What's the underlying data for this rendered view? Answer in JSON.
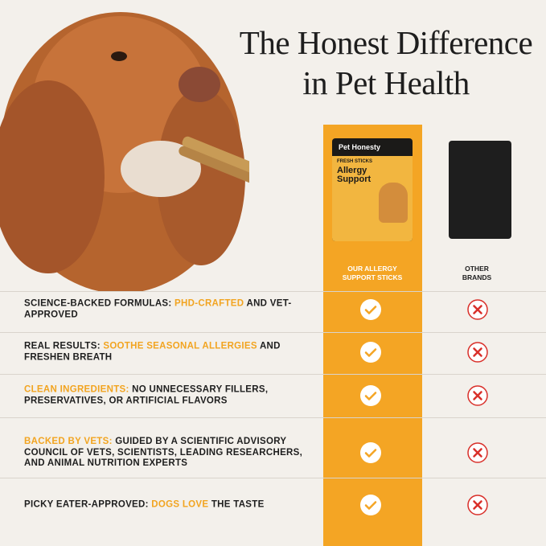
{
  "header": {
    "title_lines": [
      "The Honest Difference",
      "in Pet Health"
    ]
  },
  "product": {
    "brand": "Pet Honesty",
    "line": "FRESH STICKS",
    "name": "Allergy Support"
  },
  "columns": {
    "ours": "OUR ALLERGY SUPPORT STICKS",
    "others": "OTHER BRANDS"
  },
  "highlight_color": "#f2a420",
  "rows": [
    {
      "segments": [
        {
          "text": "SCIENCE-BACKED FORMULAS: ",
          "highlight": false
        },
        {
          "text": "PHD-CRAFTED",
          "highlight": true
        },
        {
          "text": " AND VET-APPROVED",
          "highlight": false
        }
      ]
    },
    {
      "segments": [
        {
          "text": "REAL RESULTS: ",
          "highlight": false
        },
        {
          "text": "SOOTHE SEASONAL ALLERGIES",
          "highlight": true
        },
        {
          "text": " AND FRESHEN BREATH",
          "highlight": false
        }
      ]
    },
    {
      "segments": [
        {
          "text": "CLEAN INGREDIENTS:",
          "highlight": true
        },
        {
          "text": " NO UNNECESSARY FILLERS, PRESERVATIVES, OR ARTIFICIAL FLAVORS",
          "highlight": false
        }
      ]
    },
    {
      "segments": [
        {
          "text": "BACKED BY VETS:",
          "highlight": true
        },
        {
          "text": " GUIDED BY A SCIENTIFIC ADVISORY COUNCIL OF VETS, SCIENTISTS, LEADING RESEARCHERS, AND ANIMAL NUTRITION EXPERTS",
          "highlight": false
        }
      ]
    },
    {
      "segments": [
        {
          "text": "PICKY EATER-APPROVED: ",
          "highlight": false
        },
        {
          "text": "DOGS LOVE",
          "highlight": true
        },
        {
          "text": " THE TASTE",
          "highlight": false
        }
      ]
    }
  ]
}
